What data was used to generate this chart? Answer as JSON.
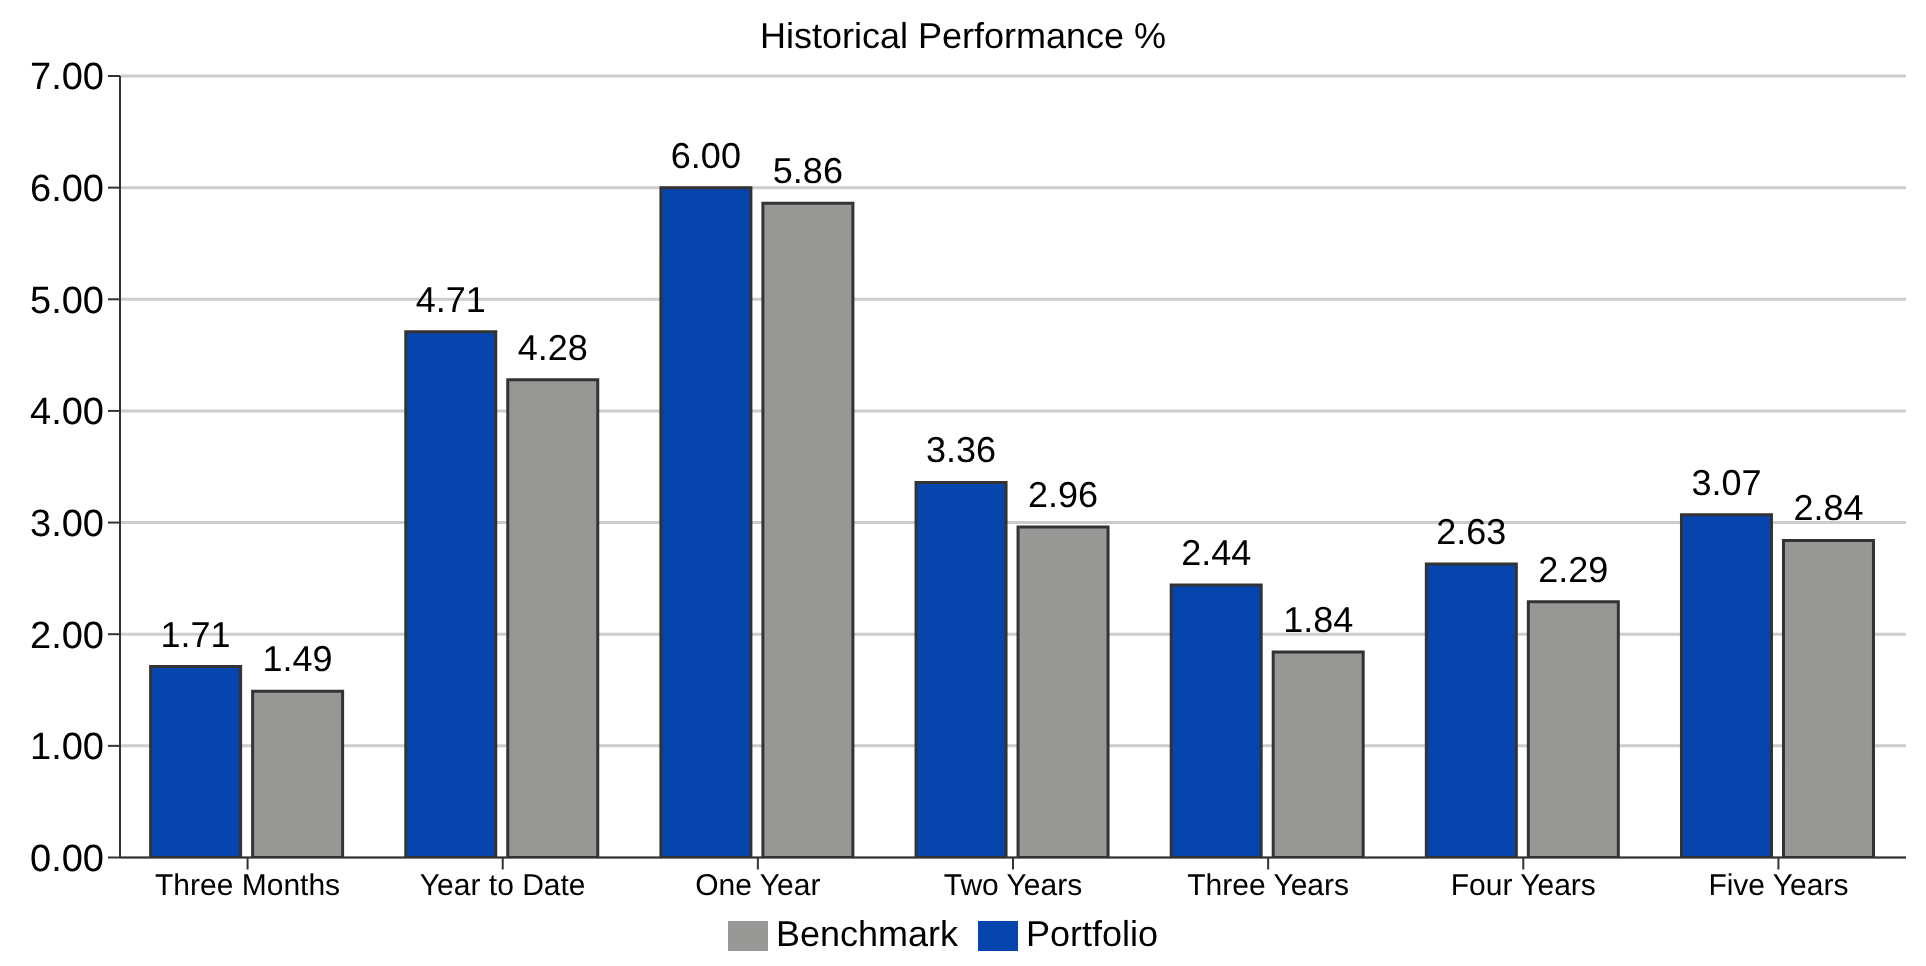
{
  "chart_data": {
    "type": "bar",
    "title": "Historical Performance %",
    "categories": [
      "Three Months",
      "Year to Date",
      "One Year",
      "Two Years",
      "Three Years",
      "Four Years",
      "Five Years"
    ],
    "series": [
      {
        "name": "Portfolio",
        "color": "#0645ad",
        "values": [
          1.71,
          4.71,
          6.0,
          3.36,
          2.44,
          2.63,
          3.07
        ],
        "value_labels": [
          "1.71",
          "4.71",
          "6.00",
          "3.36",
          "2.44",
          "2.63",
          "3.07"
        ]
      },
      {
        "name": "Benchmark",
        "color": "#979896",
        "values": [
          1.49,
          4.28,
          5.86,
          2.96,
          1.84,
          2.29,
          2.84
        ],
        "value_labels": [
          "1.49",
          "4.28",
          "5.86",
          "2.96",
          "1.84",
          "2.29",
          "2.84"
        ]
      }
    ],
    "ylim": [
      0,
      7
    ],
    "yticks": [
      {
        "value": 0,
        "label": "0.00"
      },
      {
        "value": 1,
        "label": "1.00"
      },
      {
        "value": 2,
        "label": "2.00"
      },
      {
        "value": 3,
        "label": "3.00"
      },
      {
        "value": 4,
        "label": "4.00"
      },
      {
        "value": 5,
        "label": "5.00"
      },
      {
        "value": 6,
        "label": "6.00"
      },
      {
        "value": 7,
        "label": "7.00"
      }
    ],
    "grid": "y",
    "legend": "bottom"
  }
}
